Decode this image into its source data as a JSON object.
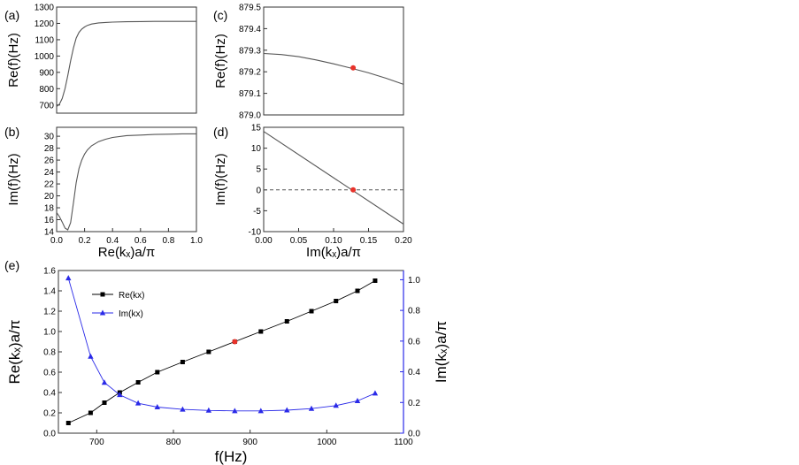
{
  "chart_data": [
    {
      "id": "a",
      "panel_label": "(a)",
      "type": "line",
      "ylabel": "Re(f)(Hz)",
      "xlabel": "",
      "xlim": [
        0,
        1
      ],
      "ylim": [
        650,
        1300
      ],
      "xticks": [],
      "xtick_labels": [],
      "yticks": [
        700,
        800,
        900,
        1000,
        1100,
        1200,
        1300
      ],
      "ytick_labels": [
        "700",
        "800",
        "900",
        "1000",
        "1100",
        "1200",
        "1300"
      ],
      "series": [
        {
          "name": "Re(f)",
          "color": "#555555",
          "x": [
            0,
            0.02,
            0.04,
            0.06,
            0.08,
            0.1,
            0.12,
            0.14,
            0.16,
            0.18,
            0.2,
            0.22,
            0.25,
            0.3,
            0.35,
            0.4,
            0.5,
            0.6,
            0.7,
            0.8,
            0.9,
            1.0
          ],
          "y": [
            690,
            705,
            740,
            800,
            880,
            970,
            1050,
            1110,
            1145,
            1165,
            1178,
            1188,
            1196,
            1203,
            1206,
            1208,
            1210,
            1211,
            1212,
            1212,
            1212,
            1212
          ]
        }
      ]
    },
    {
      "id": "b",
      "panel_label": "(b)",
      "type": "line",
      "ylabel": "Im(f)(Hz)",
      "xlabel": "Re(kₓ)a/π",
      "xlim": [
        0,
        1
      ],
      "ylim": [
        14,
        31.5
      ],
      "xticks": [
        0,
        0.2,
        0.4,
        0.6,
        0.8,
        1.0
      ],
      "xtick_labels": [
        "0.0",
        "0.2",
        "0.4",
        "0.6",
        "0.8",
        "1.0"
      ],
      "yticks": [
        14,
        16,
        18,
        20,
        22,
        24,
        26,
        28,
        30
      ],
      "ytick_labels": [
        "14",
        "16",
        "18",
        "20",
        "22",
        "24",
        "26",
        "28",
        "30"
      ],
      "series": [
        {
          "name": "Im(f)",
          "color": "#555555",
          "x": [
            0,
            0.02,
            0.04,
            0.06,
            0.08,
            0.1,
            0.12,
            0.14,
            0.16,
            0.18,
            0.2,
            0.22,
            0.25,
            0.3,
            0.35,
            0.4,
            0.5,
            0.6,
            0.7,
            0.8,
            0.9,
            1.0
          ],
          "y": [
            17.2,
            16.5,
            15.6,
            14.6,
            14.3,
            15.5,
            18.8,
            22.2,
            24.6,
            26.0,
            27.0,
            27.7,
            28.4,
            29.1,
            29.5,
            29.8,
            30.1,
            30.2,
            30.3,
            30.35,
            30.4,
            30.4
          ]
        }
      ]
    },
    {
      "id": "c",
      "panel_label": "(c)",
      "type": "line",
      "ylabel": "Re(f)(Hz)",
      "xlabel": "",
      "xlim": [
        0,
        0.2
      ],
      "ylim": [
        879.0,
        879.5
      ],
      "xticks": [],
      "xtick_labels": [],
      "yticks": [
        879.0,
        879.1,
        879.2,
        879.3,
        879.4,
        879.5
      ],
      "ytick_labels": [
        "879.0",
        "879.1",
        "879.2",
        "879.3",
        "879.4",
        "879.5"
      ],
      "series": [
        {
          "name": "Re(f)",
          "color": "#555555",
          "x": [
            0,
            0.025,
            0.05,
            0.075,
            0.1,
            0.125,
            0.15,
            0.175,
            0.2
          ],
          "y": [
            879.285,
            879.28,
            879.27,
            879.255,
            879.237,
            879.217,
            879.195,
            879.17,
            879.142
          ]
        }
      ],
      "marker": {
        "x": 0.128,
        "y": 879.218,
        "color": "#e8322a"
      }
    },
    {
      "id": "d",
      "panel_label": "(d)",
      "type": "line",
      "ylabel": "Im(f)(Hz)",
      "xlabel": "Im(kₓ)a/π",
      "xlim": [
        0,
        0.2
      ],
      "ylim": [
        -10,
        15
      ],
      "xticks": [
        0,
        0.05,
        0.1,
        0.15,
        0.2
      ],
      "xtick_labels": [
        "0.00",
        "0.05",
        "0.10",
        "0.15",
        "0.20"
      ],
      "yticks": [
        -10,
        -5,
        0,
        5,
        10,
        15
      ],
      "ytick_labels": [
        "-10",
        "-5",
        "0",
        "5",
        "10",
        "15"
      ],
      "series": [
        {
          "name": "Im(f)",
          "color": "#555555",
          "x": [
            0,
            0.2
          ],
          "y": [
            14,
            -8.2
          ]
        }
      ],
      "reference_line": {
        "y": 0,
        "style": "dashed"
      },
      "marker": {
        "x": 0.128,
        "y": 0,
        "color": "#e8322a"
      }
    },
    {
      "id": "e",
      "panel_label": "(e)",
      "type": "line",
      "xlabel": "f(Hz)",
      "ylabel": "Re(kₓ)a/π",
      "ylabel_right": "Im(kₓ)a/π",
      "xlim": [
        650,
        1100
      ],
      "ylim": [
        0,
        1.6
      ],
      "ylim_right": [
        0,
        1.06
      ],
      "xticks": [
        700,
        800,
        900,
        1000,
        1100
      ],
      "xtick_labels": [
        "700",
        "800",
        "900",
        "1000",
        "1100"
      ],
      "yticks": [
        0,
        0.2,
        0.4,
        0.6,
        0.8,
        1.0,
        1.2,
        1.4,
        1.6
      ],
      "ytick_labels": [
        "0.0",
        "0.2",
        "0.4",
        "0.6",
        "0.8",
        "1.0",
        "1.2",
        "1.4",
        "1.6"
      ],
      "yticks_right": [
        0,
        0.2,
        0.4,
        0.6,
        0.8,
        1.0
      ],
      "ytick_labels_right": [
        "0.0",
        "0.2",
        "0.4",
        "0.6",
        "0.8",
        "1.0"
      ],
      "series": [
        {
          "name": "Re(kx)",
          "color": "#000000",
          "marker": "square",
          "axis": "left",
          "x": [
            663,
            692,
            710,
            730,
            754,
            779,
            812,
            846,
            880,
            914,
            948,
            980,
            1012,
            1040,
            1063
          ],
          "y": [
            0.1,
            0.2,
            0.3,
            0.4,
            0.5,
            0.6,
            0.7,
            0.8,
            0.9,
            1.0,
            1.1,
            1.2,
            1.3,
            1.4,
            1.5
          ]
        },
        {
          "name": "Im(kx)",
          "color": "#2a2ae8",
          "marker": "triangle",
          "axis": "right",
          "x": [
            663,
            692,
            710,
            730,
            754,
            779,
            812,
            846,
            880,
            914,
            948,
            980,
            1012,
            1040,
            1063
          ],
          "y": [
            1.01,
            0.5,
            0.33,
            0.25,
            0.195,
            0.17,
            0.155,
            0.148,
            0.145,
            0.145,
            0.15,
            0.16,
            0.18,
            0.21,
            0.26
          ]
        }
      ],
      "legend": [
        "Re(kx)",
        "Im(kx)"
      ],
      "legend_position": "top-left",
      "marker": {
        "x": 880,
        "y": 0.9,
        "color": "#e8322a"
      }
    }
  ]
}
